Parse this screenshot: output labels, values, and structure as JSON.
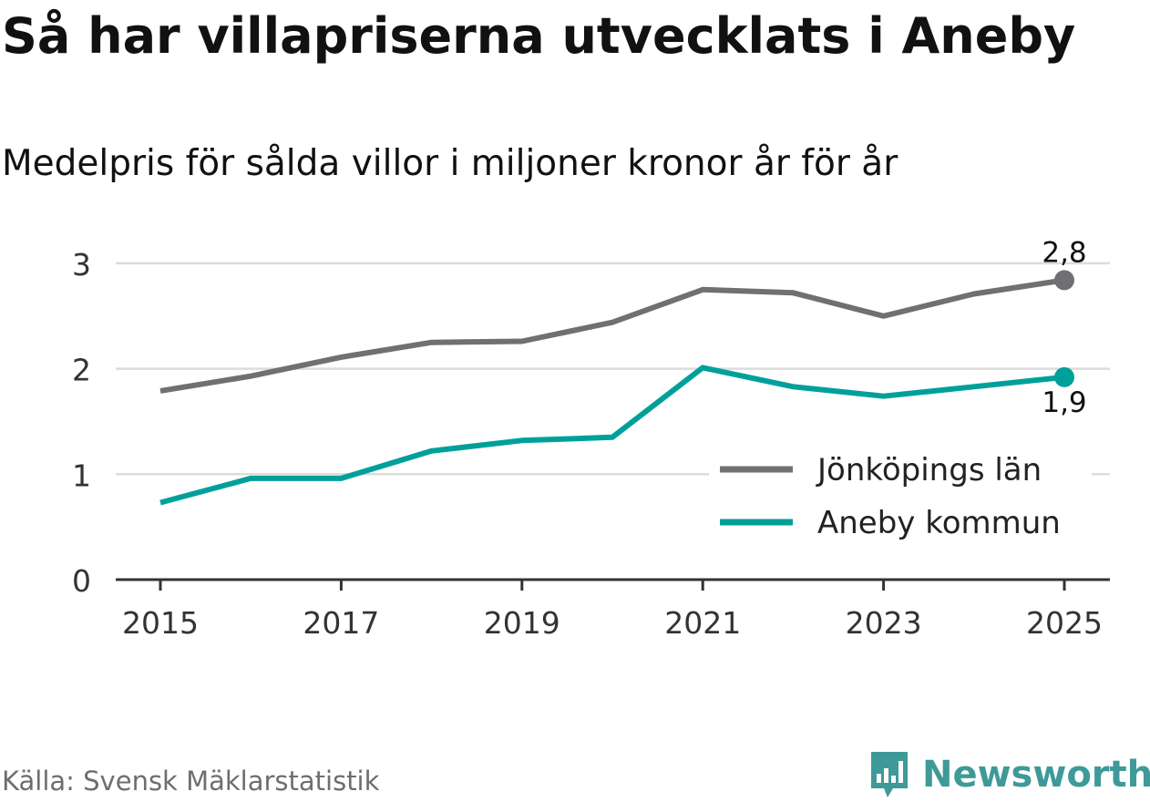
{
  "title": "Så har villapriserna utvecklats i Aneby",
  "subtitle": "Medelpris för sålda villor i miljoner kronor år för år",
  "source": "Källa: Svensk Mäklarstatistik",
  "brand": {
    "name": "Newsworthy",
    "icon": "newsworthy-logo-icon",
    "color": "#3e9a98"
  },
  "chart_data": {
    "type": "line",
    "title": "Så har villapriserna utvecklats i Aneby",
    "subtitle": "Medelpris för sålda villor i miljoner kronor år för år",
    "xlabel": "",
    "ylabel": "",
    "x": [
      2015,
      2016,
      2017,
      2018,
      2019,
      2020,
      2021,
      2022,
      2023,
      2024,
      2025
    ],
    "x_ticks": [
      "2015",
      "2017",
      "2019",
      "2021",
      "2023",
      "2025"
    ],
    "y_ticks": [
      "0",
      "1",
      "2",
      "3"
    ],
    "ylim": [
      0,
      3.15
    ],
    "grid": true,
    "legend_position": "bottom-right",
    "series": [
      {
        "name": "Jönköpings län",
        "color": "#707074",
        "values": [
          1.79,
          1.93,
          2.11,
          2.25,
          2.26,
          2.44,
          2.75,
          2.72,
          2.5,
          2.71,
          2.84
        ],
        "end_label": "2,8",
        "end_label_position": "above"
      },
      {
        "name": "Aneby kommun",
        "color": "#00a09a",
        "values": [
          0.73,
          0.96,
          0.96,
          1.22,
          1.32,
          1.35,
          2.01,
          1.83,
          1.74,
          1.83,
          1.92
        ],
        "end_label": "1,9",
        "end_label_position": "below"
      }
    ]
  }
}
